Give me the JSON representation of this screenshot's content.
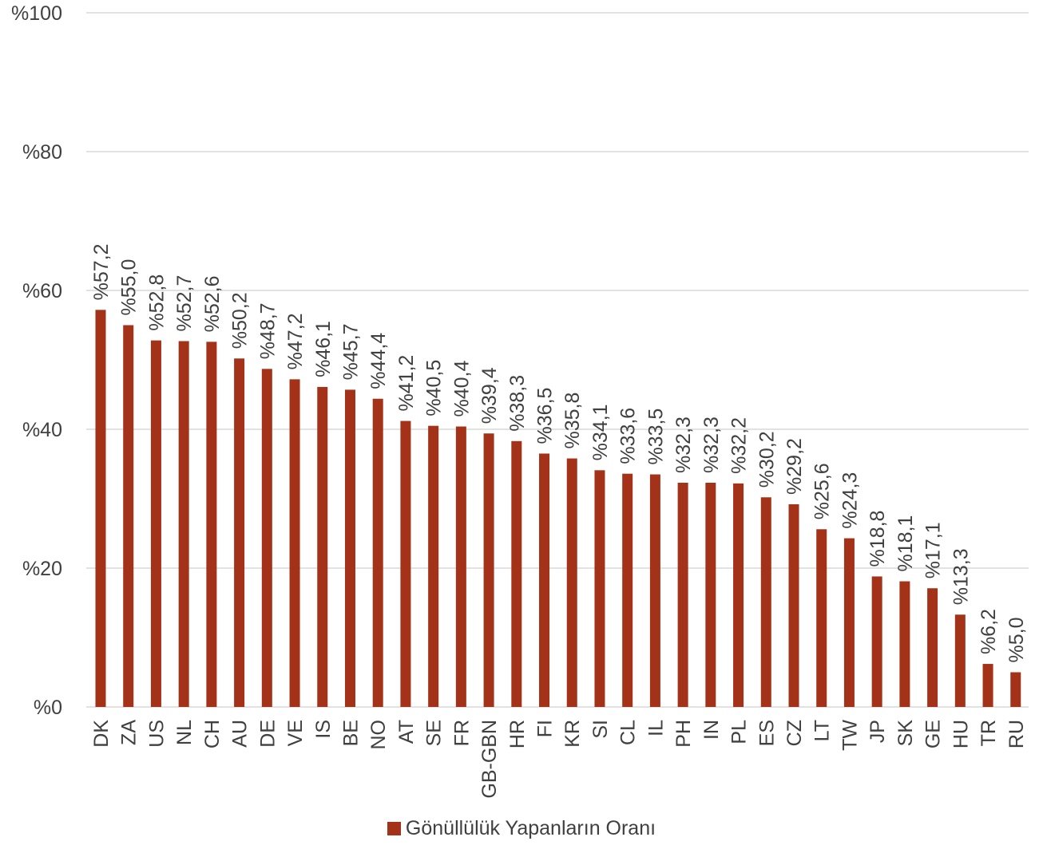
{
  "colors": {
    "bar": "#A33218",
    "grid": "#D9D9D9",
    "text": "#404040"
  },
  "chart_data": {
    "type": "bar",
    "categories": [
      "DK",
      "ZA",
      "US",
      "NL",
      "CH",
      "AU",
      "DE",
      "VE",
      "IS",
      "BE",
      "NO",
      "AT",
      "SE",
      "FR",
      "GB-GBN",
      "HR",
      "FI",
      "KR",
      "SI",
      "CL",
      "IL",
      "PH",
      "IN",
      "PL",
      "ES",
      "CZ",
      "LT",
      "TW",
      "JP",
      "SK",
      "GE",
      "HU",
      "TR",
      "RU"
    ],
    "values": [
      57.2,
      55.0,
      52.8,
      52.7,
      52.6,
      50.2,
      48.7,
      47.2,
      46.1,
      45.7,
      44.4,
      41.2,
      40.5,
      40.4,
      39.4,
      38.3,
      36.5,
      35.8,
      34.1,
      33.6,
      33.5,
      32.3,
      32.3,
      32.2,
      30.2,
      29.2,
      25.6,
      24.3,
      18.8,
      18.1,
      17.1,
      13.3,
      6.2,
      5.0
    ],
    "data_labels": [
      "%57,2",
      "%55,0",
      "%52,8",
      "%52,7",
      "%52,6",
      "%50,2",
      "%48,7",
      "%47,2",
      "%46,1",
      "%45,7",
      "%44,4",
      "%41,2",
      "%40,5",
      "%40,4",
      "%39,4",
      "%38,3",
      "%36,5",
      "%35,8",
      "%34,1",
      "%33,6",
      "%33,5",
      "%32,3",
      "%32,3",
      "%32,2",
      "%30,2",
      "%29,2",
      "%25,6",
      "%24,3",
      "%18,8",
      "%18,1",
      "%17,1",
      "%13,3",
      "%6,2",
      "%5,0"
    ],
    "ylim": [
      0,
      100
    ],
    "yticks": [
      0,
      20,
      40,
      60,
      80,
      100
    ],
    "ytick_labels": [
      "%0",
      "%20",
      "%40",
      "%60",
      "%80",
      "%100"
    ],
    "grid": true,
    "legend_position": "bottom",
    "series": [
      {
        "name": "Gönüllülük Yapanların Oranı"
      }
    ]
  }
}
